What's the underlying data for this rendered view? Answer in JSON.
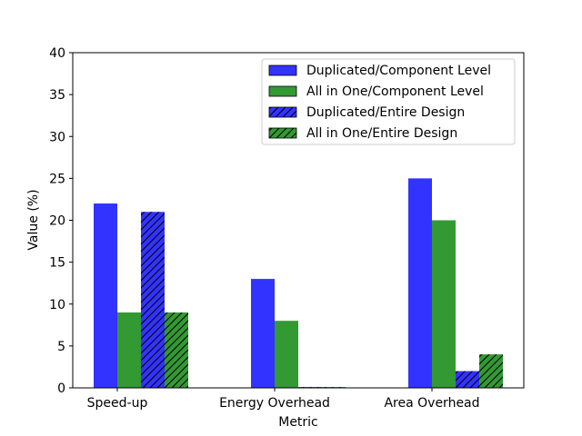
{
  "chart_data": {
    "type": "bar",
    "xlabel": "Metric",
    "ylabel": "Value (%)",
    "ylim": [
      0,
      40
    ],
    "yticks": [
      0,
      5,
      10,
      15,
      20,
      25,
      30,
      35,
      40
    ],
    "categories": [
      "Speed-up",
      "Energy Overhead",
      "Area Overhead"
    ],
    "series": [
      {
        "name": "Duplicated/Component Level",
        "values": [
          22,
          13,
          25
        ],
        "color": "#3333ff",
        "hatch": false
      },
      {
        "name": "All in One/Component Level",
        "values": [
          9,
          8,
          20
        ],
        "color": "#339933",
        "hatch": false
      },
      {
        "name": "Duplicated/Entire Design",
        "values": [
          21,
          0.1,
          2
        ],
        "color": "#3333ff",
        "hatch": true
      },
      {
        "name": "All in One/Entire Design",
        "values": [
          9,
          0.1,
          4
        ],
        "color": "#339933",
        "hatch": true
      }
    ],
    "legend_position": "top-right",
    "grid": false
  }
}
